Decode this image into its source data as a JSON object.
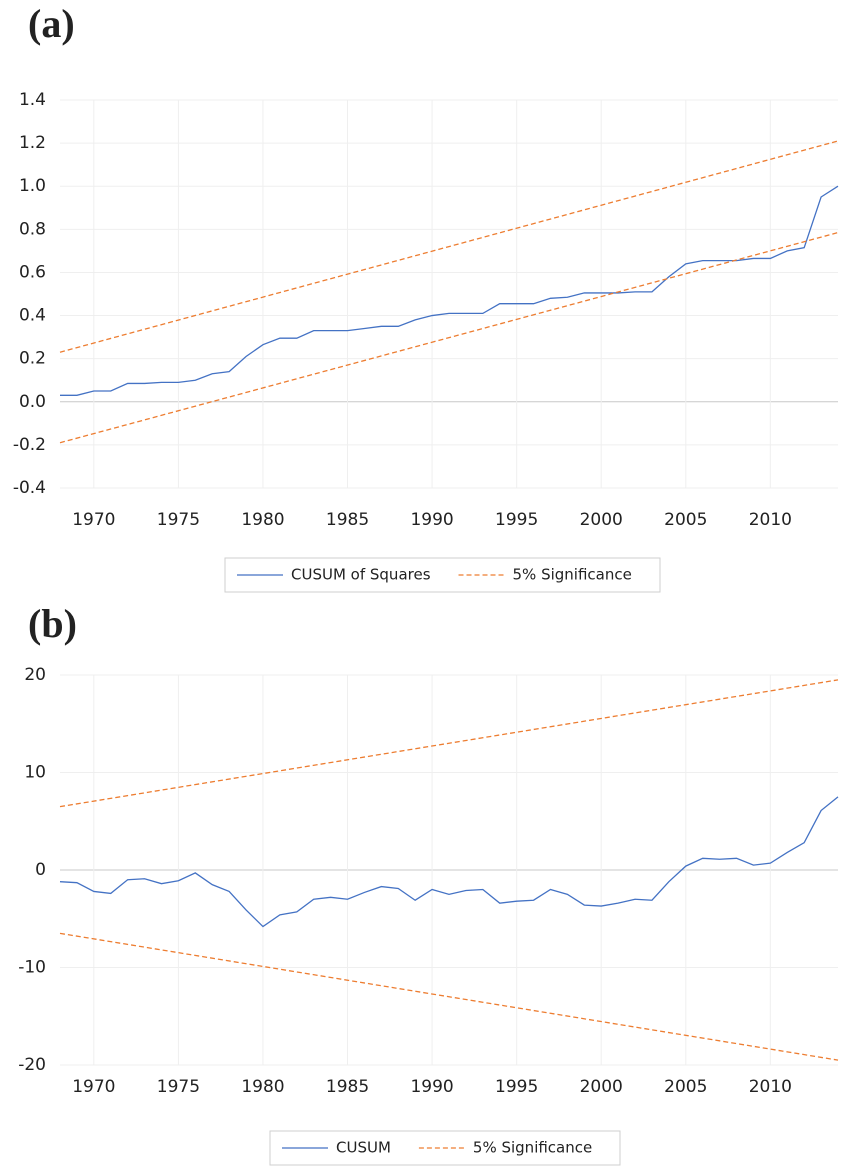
{
  "chart_data": [
    {
      "type": "line",
      "panel_label": "(a)",
      "x": [
        1968,
        1969,
        1970,
        1971,
        1972,
        1973,
        1974,
        1975,
        1976,
        1977,
        1978,
        1979,
        1980,
        1981,
        1982,
        1983,
        1984,
        1985,
        1986,
        1987,
        1988,
        1989,
        1990,
        1991,
        1992,
        1993,
        1994,
        1995,
        1996,
        1997,
        1998,
        1999,
        2000,
        2001,
        2002,
        2003,
        2004,
        2005,
        2006,
        2007,
        2008,
        2009,
        2010,
        2011,
        2012,
        2013,
        2014
      ],
      "series": [
        {
          "name": "CUSUM of Squares",
          "color": "#4472c4",
          "values": [
            0.03,
            0.03,
            0.05,
            0.05,
            0.085,
            0.085,
            0.09,
            0.09,
            0.1,
            0.13,
            0.14,
            0.21,
            0.265,
            0.295,
            0.295,
            0.33,
            0.33,
            0.33,
            0.34,
            0.35,
            0.35,
            0.38,
            0.4,
            0.41,
            0.41,
            0.41,
            0.455,
            0.455,
            0.455,
            0.48,
            0.485,
            0.505,
            0.505,
            0.505,
            0.51,
            0.51,
            0.58,
            0.64,
            0.655,
            0.655,
            0.655,
            0.665,
            0.665,
            0.7,
            0.715,
            0.95,
            1.0
          ]
        },
        {
          "name": "5% Significance",
          "color": "#ed7d31",
          "dashed": true,
          "x": [
            1968,
            2014
          ],
          "upper": [
            0.23,
            1.21
          ],
          "lower": [
            -0.19,
            0.785
          ]
        }
      ],
      "xlim": [
        1968,
        2014
      ],
      "xticks": [
        1970,
        1975,
        1980,
        1985,
        1990,
        1995,
        2000,
        2005,
        2010
      ],
      "ylim": [
        -0.4,
        1.4
      ],
      "yticks": [
        -0.4,
        -0.2,
        {
          "value": 0,
          "label": "0.0"
        },
        0.2,
        0.4,
        0.6,
        0.8,
        {
          "value": 1,
          "label": "1.0"
        },
        1.2,
        1.4
      ],
      "grid": true,
      "legend": "bottom"
    },
    {
      "type": "line",
      "panel_label": "(b)",
      "x": [
        1968,
        1969,
        1970,
        1971,
        1972,
        1973,
        1974,
        1975,
        1976,
        1977,
        1978,
        1979,
        1980,
        1981,
        1982,
        1983,
        1984,
        1985,
        1986,
        1987,
        1988,
        1989,
        1990,
        1991,
        1992,
        1993,
        1994,
        1995,
        1996,
        1997,
        1998,
        1999,
        2000,
        2001,
        2002,
        2003,
        2004,
        2005,
        2006,
        2007,
        2008,
        2009,
        2010,
        2011,
        2012,
        2013,
        2014
      ],
      "series": [
        {
          "name": "CUSUM",
          "color": "#4472c4",
          "values": [
            -1.2,
            -1.3,
            -2.2,
            -2.4,
            -1.0,
            -0.9,
            -1.4,
            -1.1,
            -0.3,
            -1.5,
            -2.2,
            -4.1,
            -5.8,
            -4.6,
            -4.3,
            -3.0,
            -2.8,
            -3.0,
            -2.3,
            -1.7,
            -1.9,
            -3.1,
            -2.0,
            -2.5,
            -2.1,
            -2.0,
            -3.4,
            -3.2,
            -3.1,
            -2.0,
            -2.5,
            -3.6,
            -3.7,
            -3.4,
            -3.0,
            -3.1,
            -1.2,
            0.4,
            1.2,
            1.1,
            1.2,
            0.5,
            0.7,
            1.8,
            2.8,
            6.1,
            7.5
          ]
        },
        {
          "name": "5% Significance",
          "color": "#ed7d31",
          "dashed": true,
          "x": [
            1968,
            2014
          ],
          "upper": [
            6.5,
            19.5
          ],
          "lower": [
            -6.5,
            -19.5
          ]
        }
      ],
      "xlim": [
        1968,
        2014
      ],
      "xticks": [
        1970,
        1975,
        1980,
        1985,
        1990,
        1995,
        2000,
        2005,
        2010
      ],
      "ylim": [
        -20,
        20
      ],
      "yticks": [
        -20,
        -10,
        0,
        10,
        20
      ],
      "grid": true,
      "legend": "bottom"
    }
  ]
}
